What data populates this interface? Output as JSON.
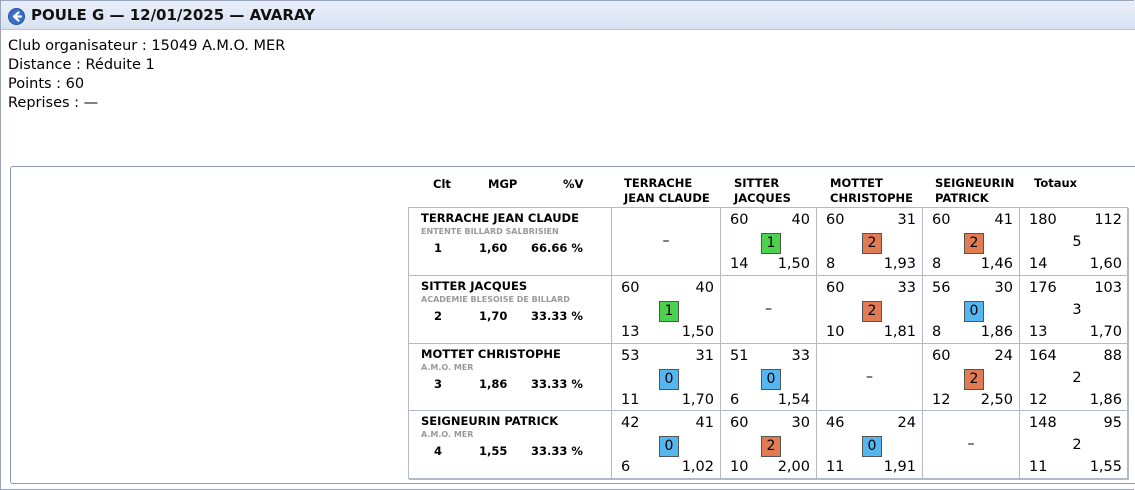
{
  "header": {
    "title": "POULE G — 12/01/2025 — AVARAY"
  },
  "info": {
    "club": "Club organisateur : 15049 A.M.O. MER",
    "distance": "Distance : Réduite 1",
    "points": "Points : 60",
    "reprises": "Reprises : —"
  },
  "columns": {
    "clt": "Clt",
    "mgp": "MGP",
    "pctv": "%V",
    "opp1_line1": "TERRACHE",
    "opp1_line2": "JEAN CLAUDE",
    "opp2_line1": "SITTER",
    "opp2_line2": "JACQUES",
    "opp3_line1": "MOTTET",
    "opp3_line2": "CHRISTOPHE",
    "opp4_line1": "SEIGNEURIN",
    "opp4_line2": "PATRICK",
    "totaux": "Totaux"
  },
  "colors": {
    "win": "#4cd24c",
    "loss": "#e07b54",
    "zero": "#55b6f0"
  },
  "players": [
    {
      "name": "TERRACHE JEAN CLAUDE",
      "club": "ENTENTE BILLARD SALBRISIEN",
      "clt": "1",
      "mgp": "1,60",
      "pctv": "66.66 %",
      "matches": [
        {
          "self": true,
          "dash": "–"
        },
        {
          "points": "60",
          "opp": "40",
          "score": "1",
          "result": "win",
          "reprises": "14",
          "avg": "1,50"
        },
        {
          "points": "60",
          "opp": "31",
          "score": "2",
          "result": "loss",
          "reprises": "8",
          "avg": "1,93"
        },
        {
          "points": "60",
          "opp": "41",
          "score": "2",
          "result": "loss",
          "reprises": "8",
          "avg": "1,46"
        }
      ],
      "totals": {
        "points": "180",
        "opp": "112",
        "score": "5",
        "reprises": "14",
        "avg": "1,60"
      }
    },
    {
      "name": "SITTER JACQUES",
      "club": "ACADEMIE BLESOISE DE BILLARD",
      "clt": "2",
      "mgp": "1,70",
      "pctv": "33.33 %",
      "matches": [
        {
          "points": "60",
          "opp": "40",
          "score": "1",
          "result": "win",
          "reprises": "13",
          "avg": "1,50"
        },
        {
          "self": true,
          "dash": "–"
        },
        {
          "points": "60",
          "opp": "33",
          "score": "2",
          "result": "loss",
          "reprises": "10",
          "avg": "1,81"
        },
        {
          "points": "56",
          "opp": "30",
          "score": "0",
          "result": "zero",
          "reprises": "8",
          "avg": "1,86"
        }
      ],
      "totals": {
        "points": "176",
        "opp": "103",
        "score": "3",
        "reprises": "13",
        "avg": "1,70"
      }
    },
    {
      "name": "MOTTET CHRISTOPHE",
      "club": "A.M.O. MER",
      "clt": "3",
      "mgp": "1,86",
      "pctv": "33.33 %",
      "matches": [
        {
          "points": "53",
          "opp": "31",
          "score": "0",
          "result": "zero",
          "reprises": "11",
          "avg": "1,70"
        },
        {
          "points": "51",
          "opp": "33",
          "score": "0",
          "result": "zero",
          "reprises": "6",
          "avg": "1,54"
        },
        {
          "self": true,
          "dash": "–"
        },
        {
          "points": "60",
          "opp": "24",
          "score": "2",
          "result": "loss",
          "reprises": "12",
          "avg": "2,50"
        }
      ],
      "totals": {
        "points": "164",
        "opp": "88",
        "score": "2",
        "reprises": "12",
        "avg": "1,86"
      }
    },
    {
      "name": "SEIGNEURIN PATRICK",
      "club": "A.M.O. MER",
      "clt": "4",
      "mgp": "1,55",
      "pctv": "33.33 %",
      "matches": [
        {
          "points": "42",
          "opp": "41",
          "score": "0",
          "result": "zero",
          "reprises": "6",
          "avg": "1,02"
        },
        {
          "points": "60",
          "opp": "30",
          "score": "2",
          "result": "loss",
          "reprises": "10",
          "avg": "2,00"
        },
        {
          "points": "46",
          "opp": "24",
          "score": "0",
          "result": "zero",
          "reprises": "11",
          "avg": "1,91"
        },
        {
          "self": true,
          "dash": "–"
        }
      ],
      "totals": {
        "points": "148",
        "opp": "95",
        "score": "2",
        "reprises": "11",
        "avg": "1,55"
      }
    }
  ]
}
